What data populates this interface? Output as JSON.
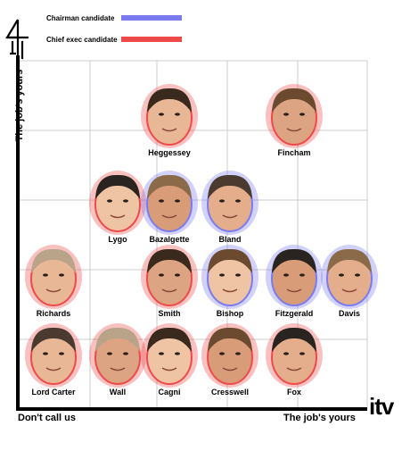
{
  "legend": {
    "chairman_label": "Chairman candidate",
    "chairman_color": "#7b7bf0",
    "chief_exec_label": "Chief exec candidate",
    "chief_exec_color": "#ee4a4a"
  },
  "axes": {
    "y_label": "The job's yours",
    "x_left_label": "Don't call us",
    "x_right_label": "The job's yours"
  },
  "logos": {
    "left": "channel-4-logo",
    "right_text": "itv"
  },
  "people": [
    {
      "name": "Heggessey",
      "role": "chief_exec",
      "col": 2,
      "row": 0
    },
    {
      "name": "Fincham",
      "role": "chief_exec",
      "col": 4,
      "row": 0
    },
    {
      "name": "Lygo",
      "role": "chief_exec",
      "col": 1,
      "row": 1
    },
    {
      "name": "Bazalgette",
      "role": "chairman",
      "col": 2,
      "row": 1
    },
    {
      "name": "Bland",
      "role": "chairman",
      "col": 3,
      "row": 1
    },
    {
      "name": "Richards",
      "role": "chief_exec",
      "col": 0,
      "row": 2
    },
    {
      "name": "Smith",
      "role": "chief_exec",
      "col": 2,
      "row": 2
    },
    {
      "name": "Bishop",
      "role": "chairman",
      "col": 3,
      "row": 2
    },
    {
      "name": "Fitzgerald",
      "role": "chairman",
      "col": 4,
      "row": 2
    },
    {
      "name": "Davis",
      "role": "chairman",
      "col": 5,
      "row": 2
    },
    {
      "name": "Lord Carter",
      "role": "chief_exec",
      "col": 0,
      "row": 3
    },
    {
      "name": "Wall",
      "role": "chief_exec",
      "col": 1,
      "row": 3
    },
    {
      "name": "Cagni",
      "role": "chief_exec",
      "col": 2,
      "row": 3
    },
    {
      "name": "Cresswell",
      "role": "chief_exec",
      "col": 3,
      "row": 3
    },
    {
      "name": "Fox",
      "role": "chief_exec",
      "col": 4,
      "row": 3
    }
  ]
}
